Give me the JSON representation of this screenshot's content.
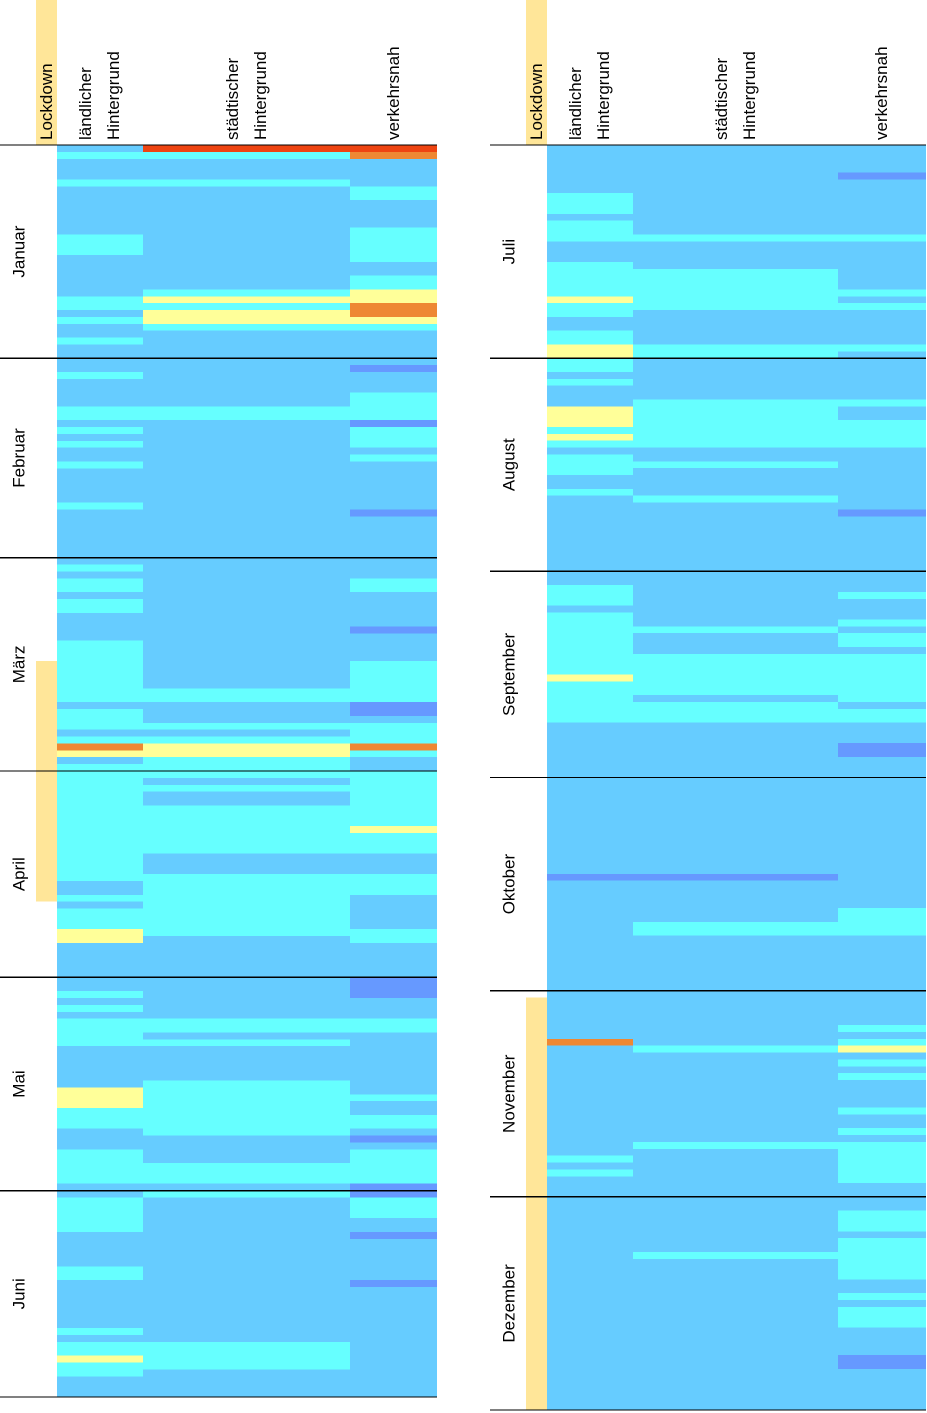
{
  "chart_data": {
    "type": "calendar-heatmap",
    "months": [
      "Januar",
      "Februar",
      "März",
      "April",
      "Mai",
      "Juni",
      "Juli",
      "August",
      "September",
      "Oktober",
      "November",
      "Dezember"
    ],
    "lockdown_label": "Lockdown",
    "lockdown_color": "#ffe699",
    "lockdown_periods": [
      {
        "from": [
          3,
          16
        ],
        "to": [
          4,
          19
        ]
      },
      {
        "from": [
          11,
          2
        ],
        "to": [
          12,
          31
        ]
      }
    ],
    "level_colors": [
      "#6699ff",
      "#66ccff",
      "#66ffff",
      "#ffff99",
      "#ee8833",
      "#ee4411"
    ],
    "series": [
      {
        "name": "ländlicher Hintergrund",
        "values": [
          [
            1,
            2,
            1,
            1,
            1,
            2,
            1,
            1,
            1,
            1,
            1,
            1,
            1,
            2,
            2,
            2,
            1,
            1,
            1,
            1,
            1,
            1,
            2,
            2,
            1,
            2,
            1,
            1,
            2,
            1,
            1
          ],
          [
            1,
            1,
            2,
            1,
            1,
            1,
            1,
            2,
            2,
            1,
            2,
            1,
            2,
            1,
            1,
            2,
            1,
            1,
            1,
            1,
            1,
            2,
            1,
            1,
            1,
            1,
            1,
            1,
            1
          ],
          [
            1,
            2,
            1,
            2,
            2,
            1,
            2,
            2,
            1,
            1,
            1,
            1,
            2,
            2,
            2,
            2,
            2,
            2,
            2,
            2,
            2,
            1,
            2,
            2,
            2,
            1,
            2,
            4,
            3,
            1,
            2
          ],
          [
            2,
            2,
            2,
            2,
            2,
            2,
            2,
            2,
            2,
            2,
            2,
            2,
            2,
            2,
            2,
            2,
            1,
            1,
            2,
            1,
            2,
            2,
            2,
            3,
            3,
            1,
            1,
            1,
            1,
            1
          ],
          [
            1,
            1,
            2,
            1,
            2,
            1,
            2,
            2,
            2,
            2,
            1,
            1,
            1,
            1,
            1,
            1,
            3,
            3,
            3,
            2,
            2,
            2,
            1,
            1,
            1,
            2,
            2,
            2,
            2,
            2,
            1
          ],
          [
            1,
            2,
            2,
            2,
            2,
            2,
            1,
            1,
            1,
            1,
            1,
            2,
            2,
            1,
            1,
            1,
            1,
            1,
            1,
            1,
            2,
            1,
            2,
            2,
            3,
            2,
            2,
            1,
            1,
            1
          ],
          [
            1,
            1,
            1,
            1,
            1,
            1,
            1,
            2,
            2,
            2,
            1,
            2,
            2,
            2,
            1,
            1,
            1,
            2,
            2,
            2,
            2,
            2,
            3,
            2,
            2,
            1,
            1,
            2,
            2,
            3,
            3
          ],
          [
            2,
            2,
            1,
            2,
            1,
            1,
            1,
            3,
            3,
            3,
            2,
            3,
            2,
            1,
            2,
            2,
            2,
            1,
            1,
            2,
            1,
            1,
            1,
            1,
            1,
            1,
            1,
            1,
            1,
            1,
            1
          ],
          [
            1,
            1,
            2,
            2,
            2,
            1,
            2,
            2,
            2,
            2,
            2,
            2,
            2,
            2,
            2,
            3,
            2,
            2,
            2,
            2,
            2,
            2,
            1,
            1,
            1,
            1,
            1,
            1,
            1,
            1
          ],
          [
            1,
            1,
            1,
            1,
            1,
            1,
            1,
            1,
            1,
            1,
            1,
            1,
            1,
            1,
            0,
            1,
            1,
            1,
            1,
            1,
            1,
            1,
            1,
            1,
            1,
            1,
            1,
            1,
            1,
            1,
            1
          ],
          [
            1,
            1,
            1,
            1,
            1,
            1,
            1,
            4,
            1,
            1,
            1,
            1,
            1,
            1,
            1,
            1,
            1,
            1,
            1,
            1,
            1,
            1,
            1,
            1,
            2,
            1,
            2,
            1,
            1,
            1
          ],
          [
            1,
            1,
            1,
            1,
            1,
            1,
            1,
            1,
            1,
            1,
            1,
            1,
            1,
            1,
            1,
            1,
            1,
            1,
            1,
            1,
            1,
            1,
            1,
            1,
            1,
            1,
            1,
            1,
            1,
            1,
            1
          ]
        ]
      },
      {
        "name": "städtischer Hintergrund",
        "values": [
          [
            5,
            2,
            1,
            1,
            1,
            2,
            1,
            1,
            1,
            1,
            1,
            1,
            1,
            1,
            1,
            1,
            1,
            1,
            1,
            1,
            1,
            2,
            3,
            2,
            3,
            3,
            2,
            1,
            1,
            1,
            1
          ],
          [
            1,
            1,
            1,
            1,
            1,
            1,
            1,
            2,
            2,
            1,
            1,
            1,
            1,
            1,
            1,
            1,
            1,
            1,
            1,
            1,
            1,
            1,
            1,
            1,
            1,
            1,
            1,
            1,
            1
          ],
          [
            1,
            1,
            1,
            1,
            1,
            1,
            1,
            1,
            1,
            1,
            1,
            1,
            1,
            1,
            1,
            1,
            1,
            1,
            1,
            2,
            2,
            1,
            1,
            1,
            2,
            1,
            2,
            3,
            3,
            2,
            2
          ],
          [
            2,
            1,
            2,
            1,
            1,
            2,
            2,
            2,
            2,
            2,
            2,
            2,
            1,
            1,
            1,
            2,
            2,
            2,
            2,
            2,
            2,
            2,
            2,
            2,
            1,
            1,
            1,
            1,
            1,
            1
          ],
          [
            1,
            1,
            1,
            1,
            1,
            1,
            2,
            2,
            1,
            2,
            1,
            1,
            1,
            1,
            1,
            2,
            2,
            2,
            2,
            2,
            2,
            2,
            2,
            1,
            1,
            1,
            1,
            2,
            2,
            2,
            1
          ],
          [
            2,
            1,
            1,
            1,
            1,
            1,
            1,
            1,
            1,
            1,
            1,
            1,
            1,
            1,
            1,
            1,
            1,
            1,
            1,
            1,
            1,
            1,
            2,
            2,
            2,
            2,
            1,
            1,
            1,
            1
          ],
          [
            1,
            1,
            1,
            1,
            1,
            1,
            1,
            1,
            1,
            1,
            1,
            1,
            1,
            2,
            1,
            1,
            1,
            1,
            2,
            2,
            2,
            2,
            2,
            2,
            1,
            1,
            1,
            1,
            1,
            2,
            2
          ],
          [
            1,
            1,
            1,
            1,
            1,
            1,
            2,
            2,
            2,
            2,
            2,
            2,
            2,
            1,
            1,
            2,
            1,
            1,
            1,
            1,
            2,
            1,
            1,
            1,
            1,
            1,
            1,
            1,
            1,
            1,
            1
          ],
          [
            1,
            1,
            1,
            1,
            1,
            1,
            1,
            1,
            2,
            1,
            1,
            1,
            2,
            2,
            2,
            2,
            2,
            2,
            1,
            2,
            2,
            2,
            1,
            1,
            1,
            1,
            1,
            1,
            1,
            1
          ],
          [
            1,
            1,
            1,
            1,
            1,
            1,
            1,
            1,
            1,
            1,
            1,
            1,
            1,
            1,
            0,
            1,
            1,
            1,
            1,
            1,
            1,
            2,
            2,
            1,
            1,
            1,
            1,
            1,
            1,
            1,
            1
          ],
          [
            1,
            1,
            1,
            1,
            1,
            1,
            1,
            1,
            2,
            1,
            1,
            1,
            1,
            1,
            1,
            1,
            1,
            1,
            1,
            1,
            1,
            1,
            2,
            1,
            1,
            1,
            1,
            1,
            1,
            1
          ],
          [
            1,
            1,
            1,
            1,
            1,
            1,
            1,
            1,
            2,
            1,
            1,
            1,
            1,
            1,
            1,
            1,
            1,
            1,
            1,
            1,
            1,
            1,
            1,
            1,
            1,
            1,
            1,
            1,
            1,
            1,
            1
          ]
        ]
      },
      {
        "name": "verkehrsnah",
        "values": [
          [
            5,
            4,
            1,
            1,
            1,
            1,
            2,
            2,
            1,
            1,
            1,
            1,
            2,
            2,
            2,
            2,
            2,
            1,
            1,
            2,
            2,
            3,
            3,
            4,
            4,
            3,
            2,
            1,
            1,
            1,
            1
          ],
          [
            1,
            0,
            1,
            1,
            1,
            2,
            2,
            2,
            2,
            0,
            2,
            2,
            2,
            1,
            2,
            1,
            1,
            1,
            1,
            1,
            1,
            1,
            0,
            1,
            1,
            1,
            1,
            1,
            1
          ],
          [
            1,
            1,
            1,
            2,
            2,
            1,
            1,
            1,
            1,
            1,
            0,
            1,
            1,
            1,
            1,
            2,
            2,
            2,
            2,
            2,
            2,
            0,
            0,
            1,
            2,
            2,
            2,
            4,
            2,
            1,
            1
          ],
          [
            2,
            2,
            2,
            2,
            2,
            2,
            2,
            2,
            3,
            2,
            2,
            2,
            1,
            1,
            1,
            2,
            2,
            2,
            1,
            1,
            1,
            1,
            1,
            2,
            2,
            1,
            1,
            1,
            1,
            1
          ],
          [
            0,
            0,
            0,
            1,
            1,
            1,
            2,
            2,
            1,
            1,
            1,
            1,
            1,
            1,
            1,
            1,
            1,
            2,
            1,
            1,
            2,
            2,
            1,
            0,
            1,
            2,
            2,
            2,
            2,
            2,
            0
          ],
          [
            0,
            2,
            2,
            2,
            1,
            1,
            0,
            1,
            1,
            1,
            1,
            1,
            1,
            0,
            1,
            1,
            1,
            1,
            1,
            1,
            1,
            1,
            1,
            1,
            1,
            1,
            1,
            1,
            1,
            1
          ],
          [
            1,
            1,
            1,
            1,
            0,
            1,
            1,
            1,
            1,
            1,
            1,
            1,
            1,
            2,
            1,
            1,
            1,
            1,
            1,
            1,
            1,
            2,
            1,
            2,
            1,
            1,
            1,
            1,
            1,
            2,
            1
          ],
          [
            1,
            1,
            1,
            1,
            1,
            1,
            2,
            1,
            1,
            2,
            2,
            2,
            2,
            1,
            1,
            1,
            1,
            1,
            1,
            1,
            1,
            1,
            0,
            1,
            1,
            1,
            1,
            1,
            1,
            1,
            1
          ],
          [
            1,
            1,
            1,
            2,
            1,
            1,
            1,
            2,
            1,
            2,
            2,
            1,
            2,
            2,
            2,
            2,
            2,
            2,
            2,
            1,
            2,
            2,
            1,
            1,
            1,
            0,
            0,
            1,
            1,
            1
          ],
          [
            1,
            1,
            1,
            1,
            1,
            1,
            1,
            1,
            1,
            1,
            1,
            1,
            1,
            1,
            1,
            1,
            1,
            1,
            1,
            2,
            2,
            2,
            2,
            1,
            1,
            1,
            1,
            1,
            1,
            1,
            1
          ],
          [
            1,
            1,
            1,
            1,
            1,
            2,
            1,
            2,
            3,
            1,
            2,
            1,
            2,
            1,
            1,
            1,
            1,
            2,
            1,
            1,
            2,
            1,
            2,
            2,
            2,
            2,
            2,
            2,
            1,
            1
          ],
          [
            1,
            1,
            2,
            2,
            2,
            1,
            2,
            2,
            2,
            2,
            2,
            2,
            1,
            1,
            2,
            1,
            2,
            2,
            2,
            1,
            1,
            1,
            1,
            0,
            0,
            1,
            1,
            1,
            1,
            1,
            1
          ]
        ]
      }
    ]
  }
}
